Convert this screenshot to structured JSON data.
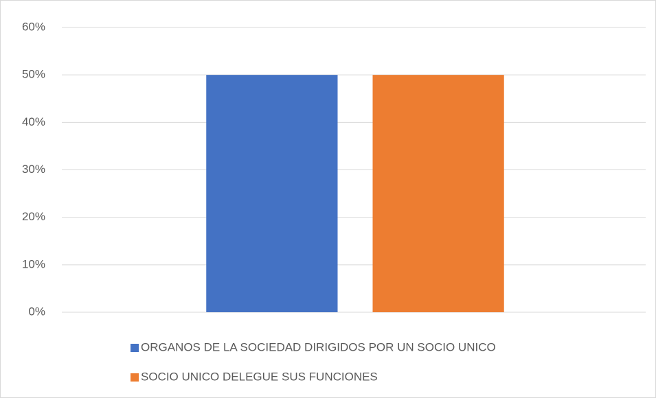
{
  "chart_data": {
    "type": "bar",
    "categories": [
      null
    ],
    "series": [
      {
        "name": "ORGANOS DE LA SOCIEDAD DIRIGIDOS POR UN SOCIO UNICO",
        "color": "#4472c4",
        "values": [
          50
        ]
      },
      {
        "name": "SOCIO UNICO DELEGUE SUS FUNCIONES",
        "color": "#ed7d31",
        "values": [
          50
        ]
      }
    ],
    "ylim": [
      0,
      60
    ],
    "yticks": [
      {
        "value": 0,
        "label": "0%"
      },
      {
        "value": 10,
        "label": "10%"
      },
      {
        "value": 20,
        "label": "20%"
      },
      {
        "value": 30,
        "label": "30%"
      },
      {
        "value": 40,
        "label": "40%"
      },
      {
        "value": 50,
        "label": "50%"
      },
      {
        "value": 60,
        "label": "60%"
      }
    ],
    "grid": true,
    "legend": "bottom"
  }
}
